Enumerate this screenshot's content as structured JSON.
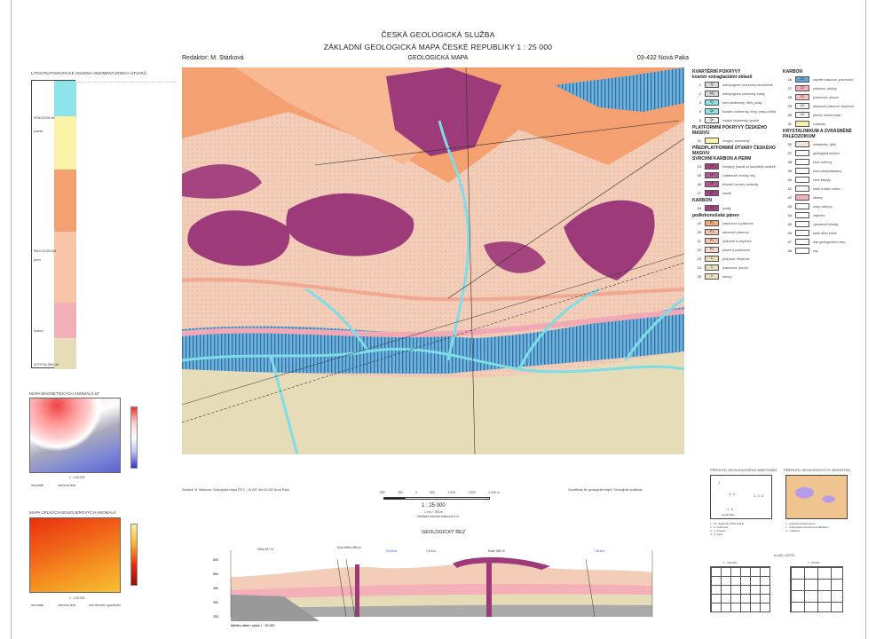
{
  "header": {
    "institution": "ČESKÁ GEOLOGICKÁ SLUŽBA",
    "title": "ZÁKLADNÍ GEOLOGICKÁ MAPA ČESKÉ REPUBLIKY 1 : 25 000",
    "editor": "Redaktor: M. Stárková",
    "map_type": "GEOLOGICKÁ MAPA",
    "sheet": "03-432 Nová Paka"
  },
  "left": {
    "strat_title": "LITOSTRATIGRAFICKÉ SCHEMA SEDIMENTÁRNÍCH ÚTVARŮ",
    "strat_units": [
      "KENOZOIKUM",
      "kvartér",
      "PALEOZOIKUM",
      "perm",
      "karbon",
      "KRYSTALINIKUM"
    ],
    "magnetic_title": "MAPA MAGNETICKÝCH ANOMÁLIÍ ΔT",
    "magnetic_scale": "1 : 125 000",
    "magnetic_legend": [
      "anomálie",
      "zlomová linie"
    ],
    "magnetic_colorbar": [
      "80",
      "60",
      "40",
      "20",
      "0",
      "-20",
      "-40",
      "-60",
      "-80",
      "-100"
    ],
    "gravity_title": "MAPA ÚPLNÝCH BOUGUEROVÝCH ANOMÁLIÍ",
    "gravity_scale": "1 : 125 000",
    "gravity_legend": [
      "anomálie",
      "zlomová linie",
      "osa tíhového gradientu"
    ]
  },
  "legend": {
    "col1": [
      {
        "head": "KVARTÉRNÍ POKRYVY"
      },
      {
        "head": "kvartér extraglaciální oblasti"
      },
      {
        "num": "1",
        "code": "Q",
        "color": "#d8d8d8",
        "text": "antropogenní uloženiny nerozlišené"
      },
      {
        "num": "2",
        "code": "aQ",
        "color": "#d8d8d8",
        "text": "antropogenní uloženiny, haldy"
      },
      {
        "num": "3",
        "code": "fQ",
        "color": "#8fe3ea",
        "text": "nivní sedimenty, hlíny, písky"
      },
      {
        "num": "4",
        "code": "Qh",
        "color": "#8fe3ea",
        "text": "fluviální sedimenty, hlíny, písky a štěrky"
      },
      {
        "num": "5",
        "code": "Qe",
        "color": "#f1f1f1",
        "text": "eolické sedimenty, spraše"
      },
      {
        "head": "PLATFORMNÍ POKRYVY ČESKÉHO MASIVU"
      },
      {
        "num": "11",
        "code": "",
        "color": "#fbf3a8",
        "text": "neogén, sedimenty"
      },
      {
        "head": "PŘEDPLATFORMNÍ ÚTVARY ČESKÉHO MASIVU"
      },
      {
        "head": "SVRCHNÍ KARBON A PERM"
      },
      {
        "num": "14",
        "code": "λP",
        "color": "#a0437e",
        "text": "melafyry (bazalt až bazaltický andezit)"
      },
      {
        "num": "15",
        "code": "λP",
        "color": "#b2578f",
        "text": "vulkanické horniny, tufy"
      },
      {
        "num": "16",
        "code": "λP",
        "color": "#b2578f",
        "text": "efuzivní horniny, andezity"
      },
      {
        "num": "17",
        "code": "λP",
        "color": "#a0437e",
        "text": "bazalt"
      },
      {
        "head": "KARBON"
      },
      {
        "num": "18",
        "code": "λC",
        "color": "#a0437e",
        "text": "ryolity"
      },
      {
        "head": "podkrkonošská pánev"
      },
      {
        "num": "19",
        "code": "P1",
        "color": "#f5a97a",
        "text": "prachovce a pískovce"
      },
      {
        "num": "20",
        "code": "P1",
        "color": "#f4c2a8",
        "text": "arkózové pískovce"
      },
      {
        "num": "21",
        "code": "P1",
        "color": "#f4c2a8",
        "text": "pískovce a slepence"
      },
      {
        "num": "22",
        "code": "P1",
        "color": "#f8d8c8",
        "text": "jílovce a prachovce"
      },
      {
        "num": "23",
        "code": "C",
        "color": "#e8dcb8",
        "text": "pískovce, slepence"
      },
      {
        "num": "24",
        "code": "C",
        "color": "#e8dcb8",
        "text": "prachovce, jílovce"
      },
      {
        "num": "25",
        "code": "C",
        "color": "#ecdcc0",
        "text": "arkózy"
      }
    ],
    "col2": [
      {
        "head": "KARBON"
      },
      {
        "num": "26",
        "code": "C2",
        "color": "#5fa8d8",
        "text": "vápnité pískovce, prachovce"
      },
      {
        "num": "27",
        "code": "C2",
        "color": "#f4b0b8",
        "text": "pískovce, arkózy"
      },
      {
        "num": "28",
        "code": "C2",
        "color": "#f6c0c0",
        "text": "prachovce, jílovce"
      },
      {
        "num": "29",
        "code": "C2",
        "color": "#f3f3f3",
        "text": "arkózové pískovce, slepence"
      },
      {
        "num": "30",
        "code": "C2",
        "color": "#f3f3f3",
        "text": "jílovce, uhelné sloje"
      },
      {
        "num": "31",
        "code": "",
        "color": "#fbf3a8",
        "text": "vulkanity"
      },
      {
        "head": "KRYSTALINIKUM A ZVRÁSNĚNÉ PALEOZOIKUM"
      },
      {
        "num": "32",
        "code": "",
        "color": "#f4e3d6",
        "text": "metadroby, fylity"
      },
      {
        "num": "37",
        "code": "",
        "color": "#ffffff",
        "text": "geologická hranice"
      },
      {
        "num": "38",
        "code": "",
        "color": "#ffffff",
        "text": "zlom ověřený"
      },
      {
        "num": "39",
        "code": "",
        "color": "#ffffff",
        "text": "zlom předpokládaný"
      },
      {
        "num": "40",
        "code": "",
        "color": "#ffffff",
        "text": "zlom zakrytý"
      },
      {
        "num": "41",
        "code": "",
        "color": "#ffffff",
        "text": "směr a sklon vrstev"
      },
      {
        "num": "42",
        "code": "",
        "color": "#f4b0b8",
        "text": "skarny"
      },
      {
        "num": "43",
        "code": "",
        "color": "#ffffff",
        "text": "lomy, odkryvy"
      },
      {
        "num": "44",
        "code": "",
        "color": "#ffffff",
        "text": "vápenec"
      },
      {
        "num": "45",
        "code": "",
        "color": "#ffffff",
        "text": "významné lokality"
      },
      {
        "num": "46",
        "code": "",
        "color": "#ffffff",
        "text": "staré důlní práce"
      },
      {
        "num": "47",
        "code": "",
        "color": "#ffffff",
        "text": "linie geologického řezu"
      },
      {
        "num": "48",
        "code": "",
        "color": "#ffffff",
        "text": "vrty"
      }
    ]
  },
  "bottom": {
    "notes_left": "Sestavil: M. Stárková; Geologická mapa ČR 1 : 25 000, list 03-432 Nová Paka",
    "scale_ticks": [
      "500",
      "250",
      "0",
      "500",
      "1 000",
      "1 500",
      "2 000 m"
    ],
    "scale_text": "1 : 25 000",
    "scale_sub": "1 cm = 250 m",
    "scale_contour": "Základní interval vrstevnic 5 m",
    "notes_right": "Vysvětlivky ke geologické mapě; Geologické podklady",
    "section_title": "GEOLOGICKÝ ŘEZ",
    "section_labels": [
      "Vrba 427 m",
      "Kozí hřbet 466 m",
      "Bystřice",
      "Oleška",
      "Kotel 560 m",
      "Oleška"
    ],
    "section_y": [
      "600",
      "500",
      "400",
      "300",
      "200"
    ],
    "section_scale": "Měřítko délek i výšek 1 : 25 000"
  },
  "overview": {
    "mapping_title": "PŘEHLED GEOLOGICKÉHO MAPOVÁNÍ",
    "mapping_areas": [
      "1",
      "1, 3",
      "1, 2, 4",
      "1, 3"
    ],
    "mapping_town": "Nová Paka",
    "mapping_list": [
      "1 - M. Stárková (2013–2014)",
      "2 - Z. Cáchová",
      "3 - V. Prouza",
      "4 - T. Nývlt"
    ],
    "units_title": "PŘEHLED GEOLOGICKÝCH JEDNOTEK",
    "units_list": [
      "1 - podkrkonošská pánev",
      "2 - krkonošsko-jizerské krystalinikum",
      "3 - vulkanity"
    ],
    "sheet_index_title": "KLAD LISTŮ",
    "sheet_index_a": "1 : 100 000",
    "sheet_index_b": "1 : 25 000"
  },
  "colors": {
    "permian_sandstone": "#f3cdb8",
    "volcanic": "#9c3a7a",
    "orange": "#f4a070",
    "carbon_blue": "#5fa8d8",
    "river": "#8ee0e8",
    "carbon_beige": "#e6ddb8"
  }
}
